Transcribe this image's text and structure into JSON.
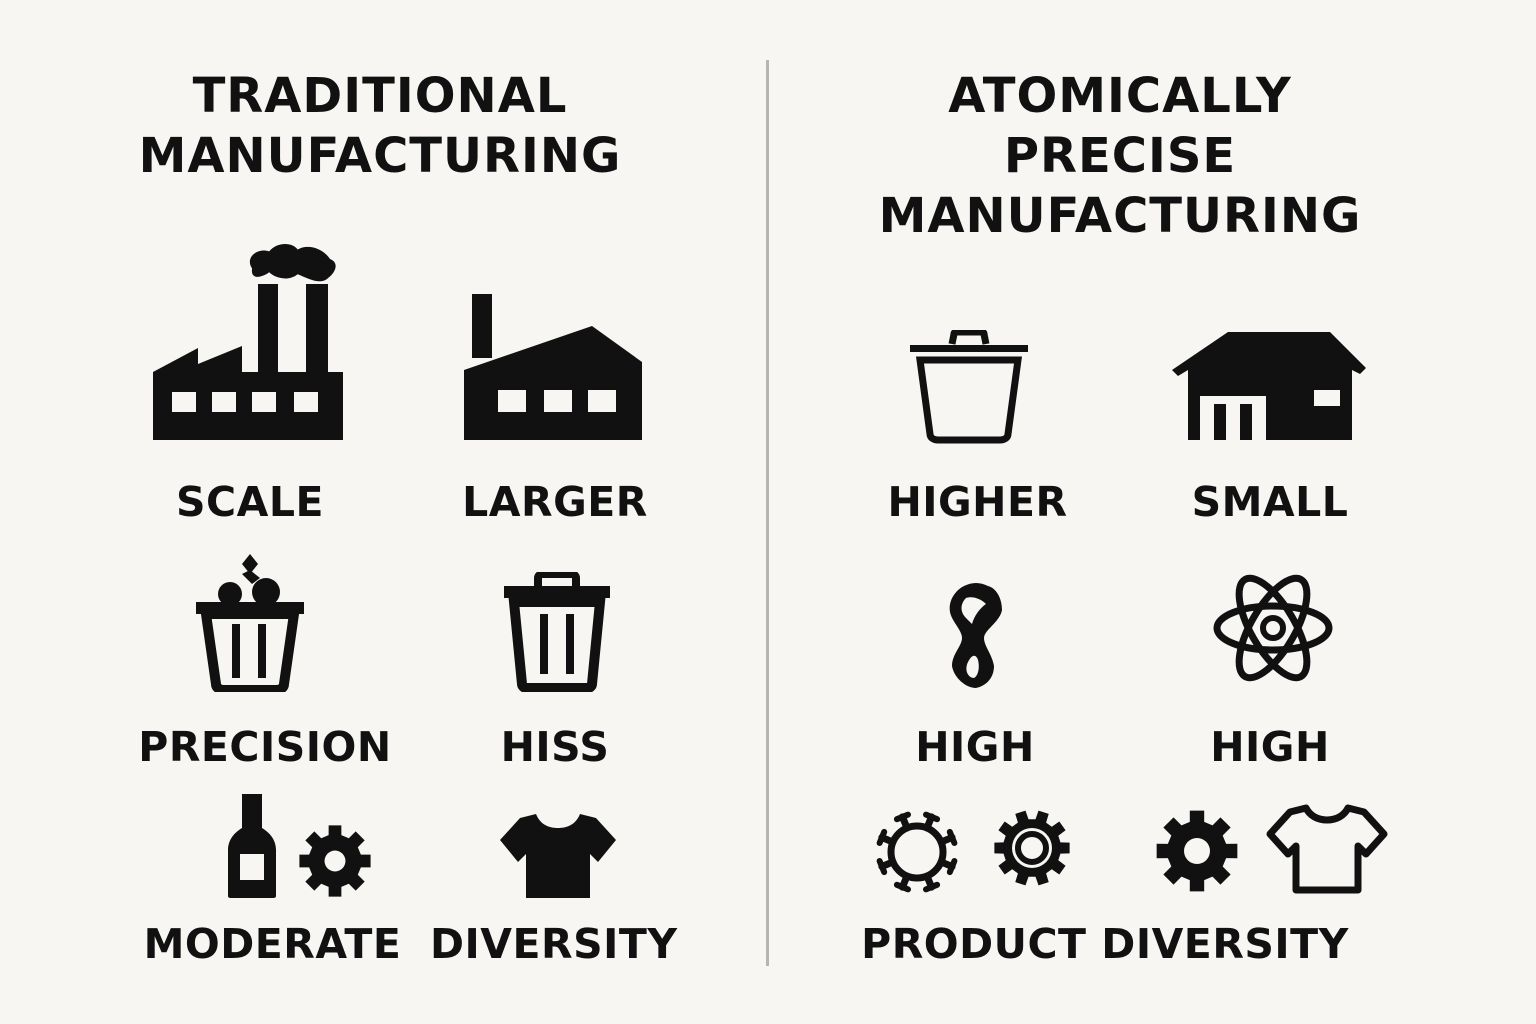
{
  "left_panel": {
    "title_line1": "TRADITIONAL",
    "title_line2": "MANUFACTURING",
    "labels": {
      "scale": "SCALE",
      "larger": "LARGER",
      "precision": "PRECISION",
      "hiss": "HISS",
      "moderate": "MODERATE",
      "diversity": "DIVERSITY"
    }
  },
  "right_panel": {
    "title_line1": "ATOMICALLY PRECISE",
    "title_line2": "MANUFACTURING",
    "labels": {
      "higher": "HIGHER",
      "small": "SMALL",
      "high_left": "HIGH",
      "high_right": "HIGH",
      "product_diversity": "PRODUCT DIVERSITY"
    }
  },
  "icons": [
    "factory-smokestacks-icon",
    "warehouse-icon",
    "waste-basket-icon",
    "trash-can-icon",
    "bottle-icon",
    "gear-icon",
    "tshirt-icon",
    "trash-can-outline-icon",
    "house-icon",
    "molecule-icon",
    "atom-icon",
    "virus-gear-icon",
    "ring-gear-icon",
    "tshirt-outline-icon"
  ],
  "colors": {
    "background": "#f7f6f2",
    "ink": "#111111",
    "divider": "#b5b5b5"
  }
}
